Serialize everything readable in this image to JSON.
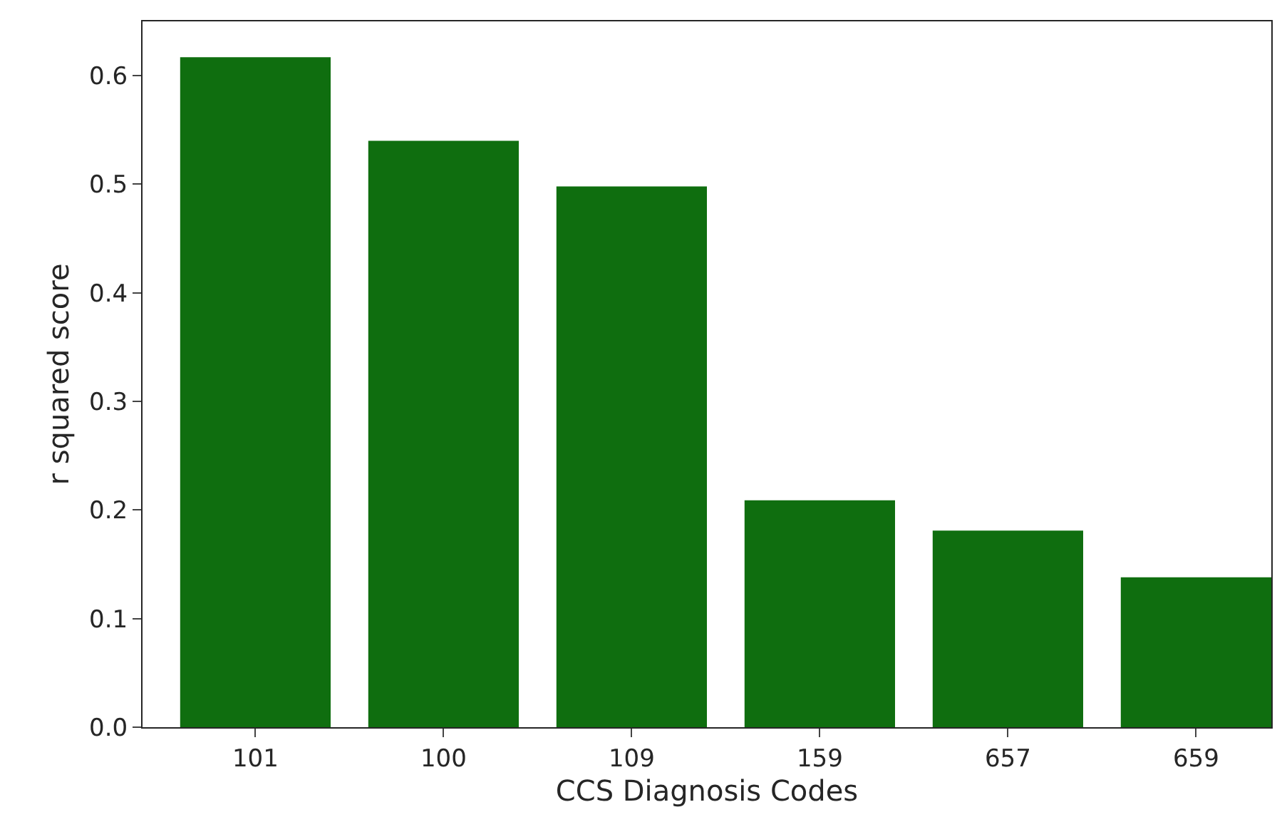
{
  "chart_data": {
    "type": "bar",
    "xlabel": "CCS Diagnosis Codes",
    "ylabel": "r squared score",
    "categories": [
      "101",
      "100",
      "109",
      "159",
      "657",
      "659"
    ],
    "values": [
      0.617,
      0.54,
      0.498,
      0.209,
      0.181,
      0.138
    ],
    "color": "#0f6e0f",
    "ylim": [
      0,
      0.65
    ],
    "yticks": [
      {
        "value": 0,
        "label": "0.0"
      },
      0.1,
      0.2,
      0.3,
      0.4,
      0.5,
      0.6
    ]
  }
}
